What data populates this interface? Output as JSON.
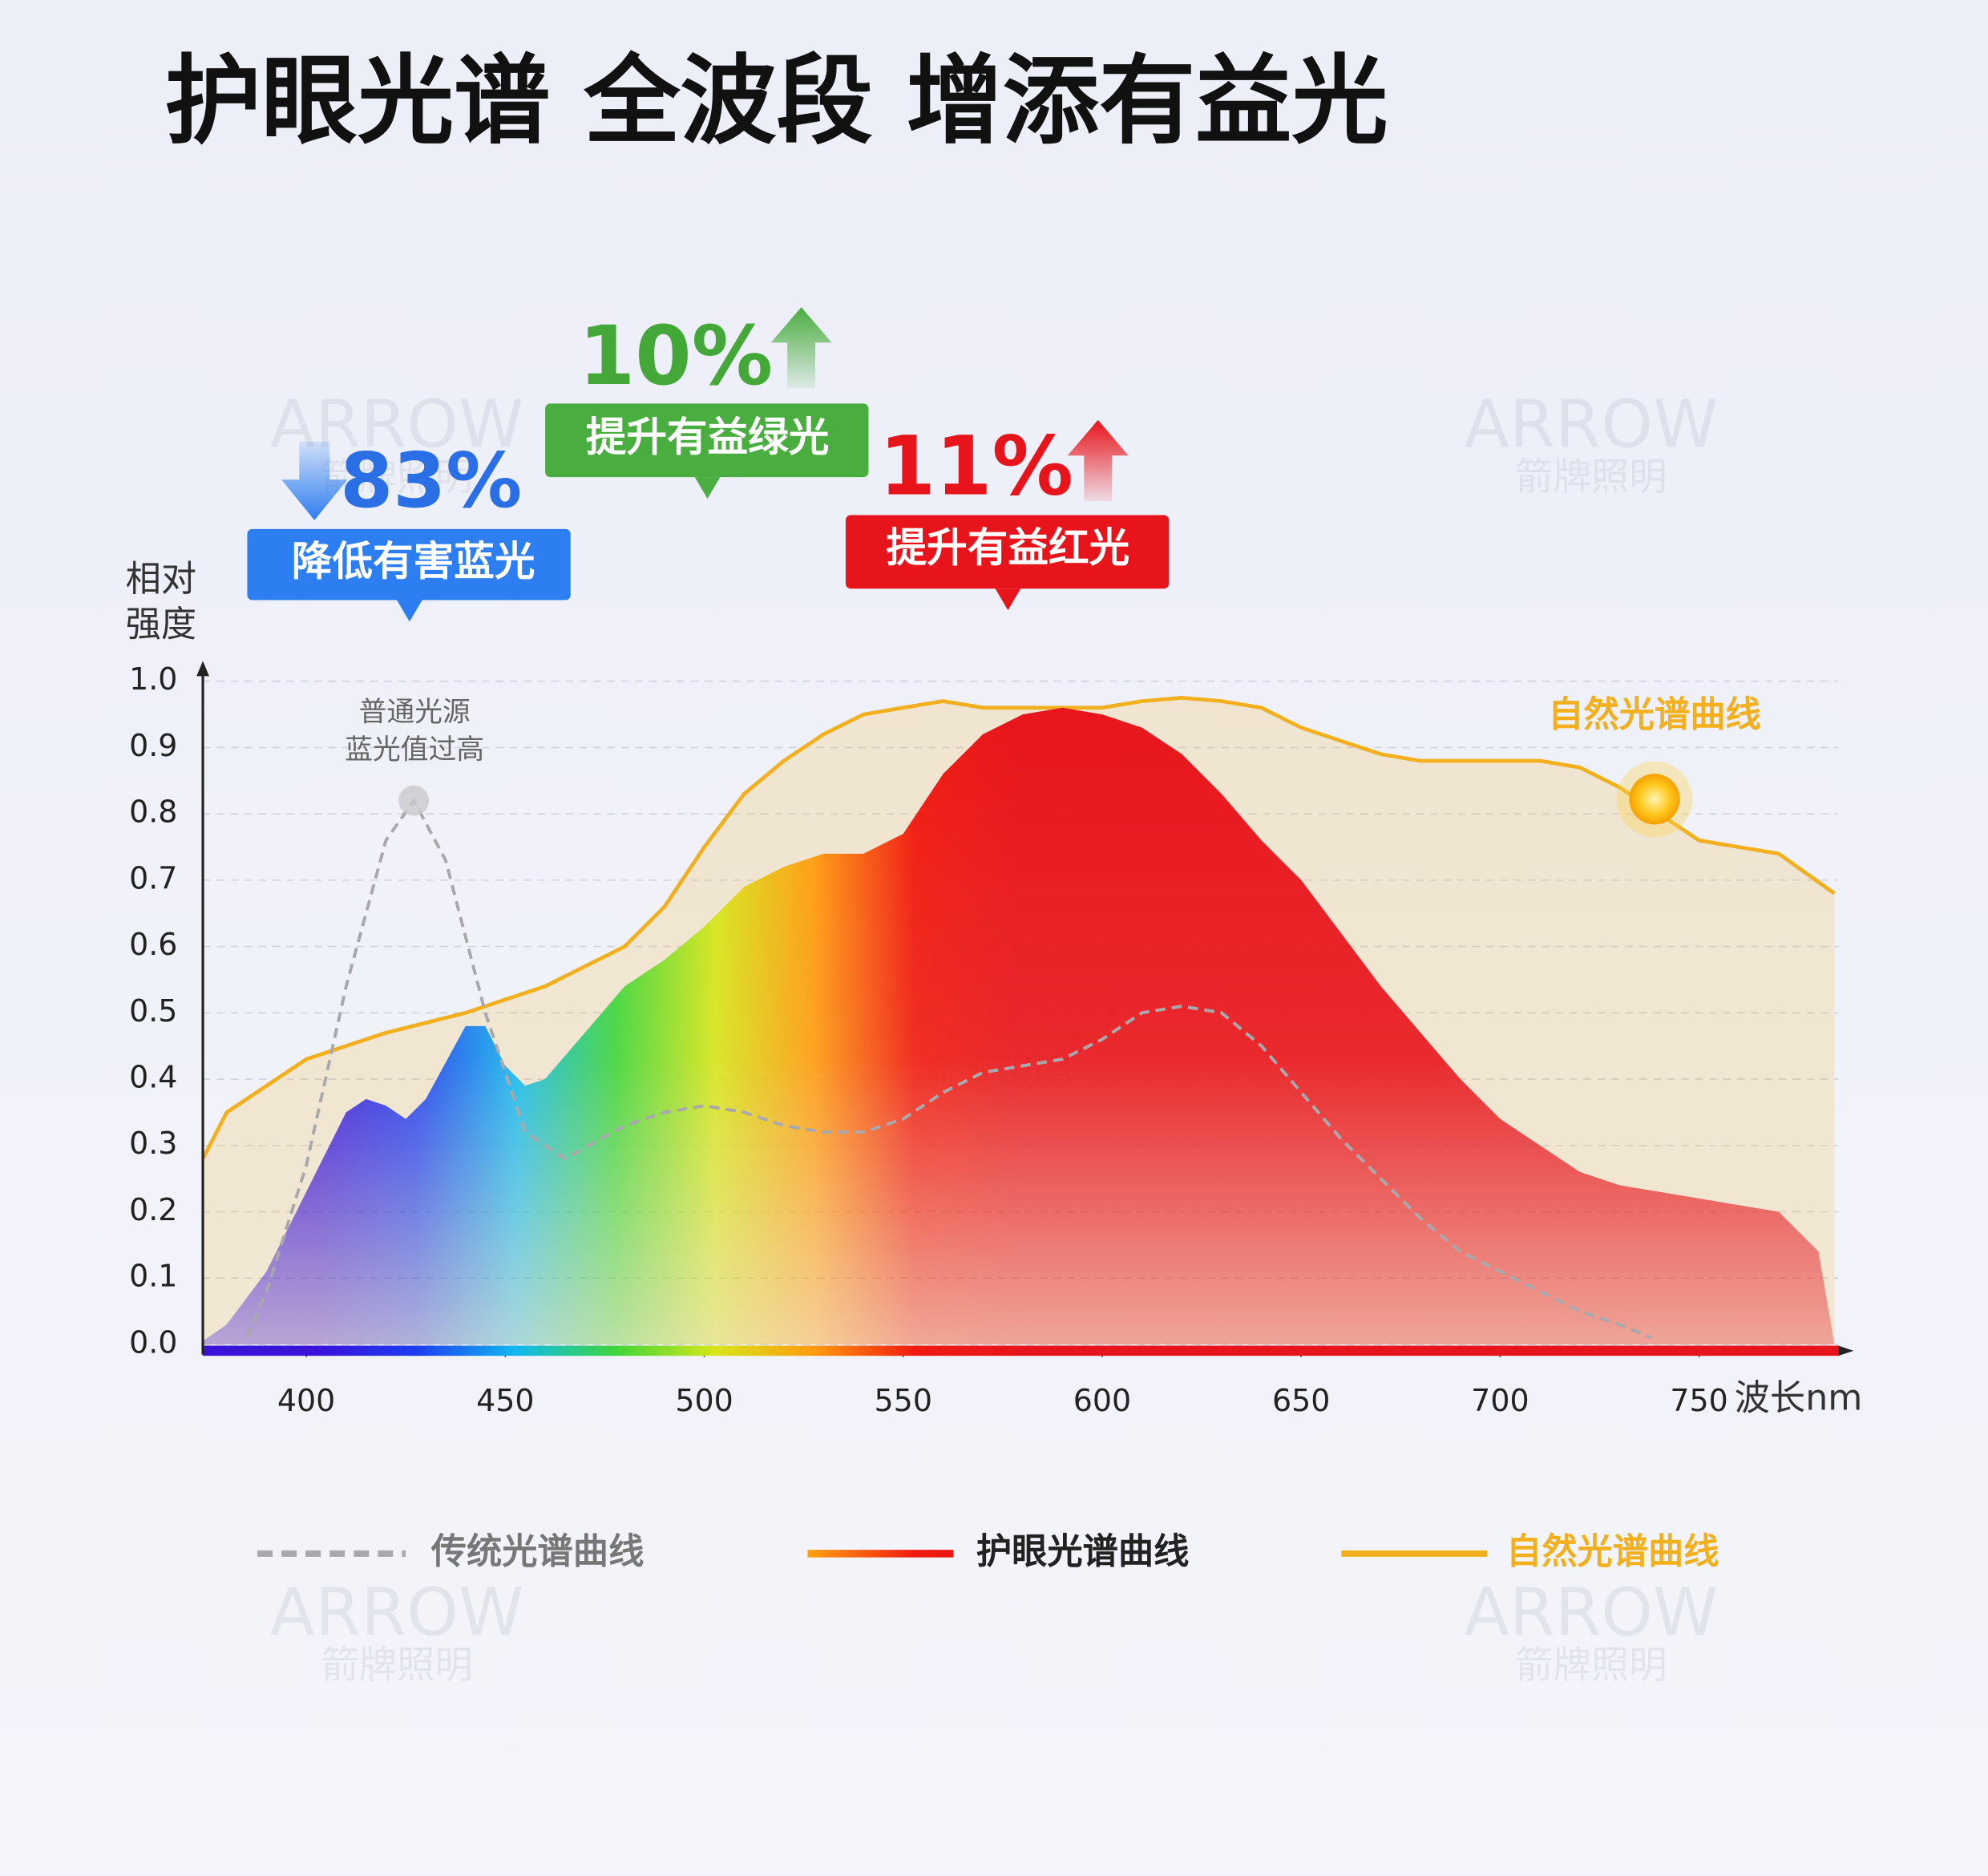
{
  "chart_data": {
    "type": "line",
    "title": "护眼光谱 全波段 增添有益光",
    "y_label": [
      "相对",
      "强度"
    ],
    "x_label": "波长nm",
    "xlim": [
      374,
      785
    ],
    "xticks": [
      400,
      450,
      500,
      550,
      600,
      650,
      700,
      750
    ],
    "ylim": [
      0,
      1
    ],
    "yticks": [
      {
        "value": 0,
        "label": "0.0"
      },
      0.1,
      0.2,
      0.3,
      0.4,
      0.5,
      0.6,
      0.7,
      0.8,
      0.9,
      {
        "value": 1,
        "label": "1.0"
      }
    ],
    "grid": true,
    "callouts": [
      {
        "value": "83%",
        "label": "降低有害蓝光",
        "color": "#2d7ef0",
        "text_color": "#2a6fe6",
        "direction": "down"
      },
      {
        "value": "10%",
        "label": "提升有益绿光",
        "color": "#4aad3f",
        "text_color": "#43a838",
        "direction": "up"
      },
      {
        "value": "11%",
        "label": "提升有益红光",
        "color": "#e8141b",
        "text_color": "#e8141b",
        "direction": "up"
      }
    ],
    "peak_note": [
      "普通光源",
      "蓝光值过高"
    ],
    "curve_label": "自然光谱曲线",
    "watermark": {
      "text": "ARROW",
      "subtext": "箭牌照明"
    },
    "series": [
      {
        "name": "传统光谱曲线",
        "color": "#a9a9ad",
        "style": "dashed",
        "x": [
          385,
          390,
          400,
          410,
          420,
          427,
          435,
          445,
          455,
          465,
          480,
          490,
          500,
          510,
          520,
          530,
          540,
          550,
          560,
          570,
          580,
          590,
          600,
          610,
          620,
          630,
          640,
          650,
          660,
          670,
          680,
          690,
          700,
          710,
          720,
          730,
          738
        ],
        "values": [
          0.01,
          0.08,
          0.27,
          0.54,
          0.76,
          0.82,
          0.73,
          0.5,
          0.32,
          0.28,
          0.33,
          0.35,
          0.36,
          0.35,
          0.33,
          0.32,
          0.32,
          0.34,
          0.38,
          0.41,
          0.42,
          0.43,
          0.46,
          0.5,
          0.51,
          0.5,
          0.45,
          0.38,
          0.31,
          0.25,
          0.19,
          0.14,
          0.11,
          0.08,
          0.05,
          0.03,
          0.01
        ]
      },
      {
        "name": "护眼光谱曲线",
        "colors": [
          "#3a12d8",
          "#1d3cf0",
          "#12b8f0",
          "#3fd63a",
          "#d6e61a",
          "#ff9a10",
          "#f01a10",
          "#e8141b"
        ],
        "style": "spectrum",
        "x": [
          374,
          380,
          390,
          400,
          410,
          415,
          420,
          425,
          430,
          440,
          445,
          450,
          455,
          460,
          470,
          480,
          490,
          500,
          510,
          520,
          530,
          540,
          550,
          560,
          570,
          580,
          590,
          600,
          610,
          620,
          630,
          640,
          650,
          660,
          670,
          680,
          690,
          700,
          710,
          720,
          730,
          740,
          750,
          760,
          770,
          780,
          784
        ],
        "values": [
          0.005,
          0.03,
          0.11,
          0.23,
          0.35,
          0.37,
          0.36,
          0.34,
          0.37,
          0.48,
          0.48,
          0.42,
          0.39,
          0.4,
          0.47,
          0.54,
          0.58,
          0.63,
          0.69,
          0.72,
          0.74,
          0.74,
          0.77,
          0.86,
          0.92,
          0.95,
          0.96,
          0.95,
          0.93,
          0.89,
          0.83,
          0.76,
          0.7,
          0.62,
          0.54,
          0.47,
          0.4,
          0.34,
          0.3,
          0.26,
          0.24,
          0.23,
          0.22,
          0.21,
          0.2,
          0.14,
          0
        ]
      },
      {
        "name": "自然光谱曲线",
        "color": "#f2b01e",
        "style": "area",
        "x": [
          374,
          380,
          400,
          420,
          440,
          460,
          480,
          490,
          500,
          510,
          520,
          530,
          540,
          550,
          560,
          570,
          580,
          590,
          600,
          610,
          620,
          630,
          640,
          650,
          660,
          670,
          680,
          690,
          700,
          710,
          720,
          730,
          740,
          750,
          760,
          770,
          784
        ],
        "values": [
          0.28,
          0.35,
          0.43,
          0.47,
          0.5,
          0.54,
          0.6,
          0.66,
          0.75,
          0.83,
          0.88,
          0.92,
          0.95,
          0.96,
          0.97,
          0.96,
          0.96,
          0.96,
          0.96,
          0.97,
          0.975,
          0.97,
          0.96,
          0.93,
          0.91,
          0.89,
          0.88,
          0.88,
          0.88,
          0.88,
          0.87,
          0.84,
          0.8,
          0.76,
          0.75,
          0.74,
          0.68
        ]
      }
    ]
  }
}
